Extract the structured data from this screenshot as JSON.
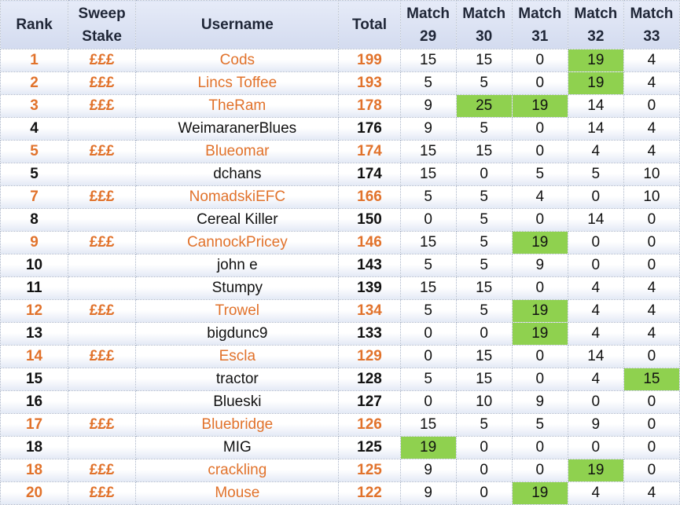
{
  "headers": {
    "rank": "Rank",
    "sweep_line1": "Sweep",
    "sweep_line2": "Stake",
    "username": "Username",
    "total": "Total",
    "match_word": "Match",
    "matches": [
      "29",
      "30",
      "31",
      "32",
      "33"
    ]
  },
  "highlight_color": "#8fd14f",
  "stake_color": "#e1722b",
  "rows": [
    {
      "rank": "1",
      "sweep": "£££",
      "username": "Cods",
      "total": "199",
      "matches": [
        "15",
        "15",
        "0",
        "19",
        "4"
      ],
      "highlight": [
        false,
        false,
        false,
        true,
        false
      ]
    },
    {
      "rank": "2",
      "sweep": "£££",
      "username": "Lincs Toffee",
      "total": "193",
      "matches": [
        "5",
        "5",
        "0",
        "19",
        "4"
      ],
      "highlight": [
        false,
        false,
        false,
        true,
        false
      ]
    },
    {
      "rank": "3",
      "sweep": "£££",
      "username": "TheRam",
      "total": "178",
      "matches": [
        "9",
        "25",
        "19",
        "14",
        "0"
      ],
      "highlight": [
        false,
        true,
        true,
        false,
        false
      ]
    },
    {
      "rank": "4",
      "sweep": "",
      "username": "WeimaranerBlues",
      "total": "176",
      "matches": [
        "9",
        "5",
        "0",
        "14",
        "4"
      ],
      "highlight": [
        false,
        false,
        false,
        false,
        false
      ]
    },
    {
      "rank": "5",
      "sweep": "£££",
      "username": "Blueomar",
      "total": "174",
      "matches": [
        "15",
        "15",
        "0",
        "4",
        "4"
      ],
      "highlight": [
        false,
        false,
        false,
        false,
        false
      ]
    },
    {
      "rank": "5",
      "sweep": "",
      "username": "dchans",
      "total": "174",
      "matches": [
        "15",
        "0",
        "5",
        "5",
        "10"
      ],
      "highlight": [
        false,
        false,
        false,
        false,
        false
      ]
    },
    {
      "rank": "7",
      "sweep": "£££",
      "username": "NomadskiEFC",
      "total": "166",
      "matches": [
        "5",
        "5",
        "4",
        "0",
        "10"
      ],
      "highlight": [
        false,
        false,
        false,
        false,
        false
      ]
    },
    {
      "rank": "8",
      "sweep": "",
      "username": "Cereal Killer",
      "total": "150",
      "matches": [
        "0",
        "5",
        "0",
        "14",
        "0"
      ],
      "highlight": [
        false,
        false,
        false,
        false,
        false
      ]
    },
    {
      "rank": "9",
      "sweep": "£££",
      "username": "CannockPricey",
      "total": "146",
      "matches": [
        "15",
        "5",
        "19",
        "0",
        "0"
      ],
      "highlight": [
        false,
        false,
        true,
        false,
        false
      ]
    },
    {
      "rank": "10",
      "sweep": "",
      "username": "john e",
      "total": "143",
      "matches": [
        "5",
        "5",
        "9",
        "0",
        "0"
      ],
      "highlight": [
        false,
        false,
        false,
        false,
        false
      ]
    },
    {
      "rank": "11",
      "sweep": "",
      "username": "Stumpy",
      "total": "139",
      "matches": [
        "15",
        "15",
        "0",
        "4",
        "4"
      ],
      "highlight": [
        false,
        false,
        false,
        false,
        false
      ]
    },
    {
      "rank": "12",
      "sweep": "£££",
      "username": "Trowel",
      "total": "134",
      "matches": [
        "5",
        "5",
        "19",
        "4",
        "4"
      ],
      "highlight": [
        false,
        false,
        true,
        false,
        false
      ]
    },
    {
      "rank": "13",
      "sweep": "",
      "username": "bigdunc9",
      "total": "133",
      "matches": [
        "0",
        "0",
        "19",
        "4",
        "4"
      ],
      "highlight": [
        false,
        false,
        true,
        false,
        false
      ]
    },
    {
      "rank": "14",
      "sweep": "£££",
      "username": "Escla",
      "total": "129",
      "matches": [
        "0",
        "15",
        "0",
        "14",
        "0"
      ],
      "highlight": [
        false,
        false,
        false,
        false,
        false
      ]
    },
    {
      "rank": "15",
      "sweep": "",
      "username": "tractor",
      "total": "128",
      "matches": [
        "5",
        "15",
        "0",
        "4",
        "15"
      ],
      "highlight": [
        false,
        false,
        false,
        false,
        true
      ]
    },
    {
      "rank": "16",
      "sweep": "",
      "username": "Blueski",
      "total": "127",
      "matches": [
        "0",
        "10",
        "9",
        "0",
        "0"
      ],
      "highlight": [
        false,
        false,
        false,
        false,
        false
      ]
    },
    {
      "rank": "17",
      "sweep": "£££",
      "username": "Bluebridge",
      "total": "126",
      "matches": [
        "15",
        "5",
        "5",
        "9",
        "0"
      ],
      "highlight": [
        false,
        false,
        false,
        false,
        false
      ]
    },
    {
      "rank": "18",
      "sweep": "",
      "username": "MIG",
      "total": "125",
      "matches": [
        "19",
        "0",
        "0",
        "0",
        "0"
      ],
      "highlight": [
        true,
        false,
        false,
        false,
        false
      ]
    },
    {
      "rank": "18",
      "sweep": "£££",
      "username": "crackling",
      "total": "125",
      "matches": [
        "9",
        "0",
        "0",
        "19",
        "0"
      ],
      "highlight": [
        false,
        false,
        false,
        true,
        false
      ]
    },
    {
      "rank": "20",
      "sweep": "£££",
      "username": "Mouse",
      "total": "122",
      "matches": [
        "9",
        "0",
        "19",
        "4",
        "4"
      ],
      "highlight": [
        false,
        false,
        true,
        false,
        false
      ]
    }
  ]
}
